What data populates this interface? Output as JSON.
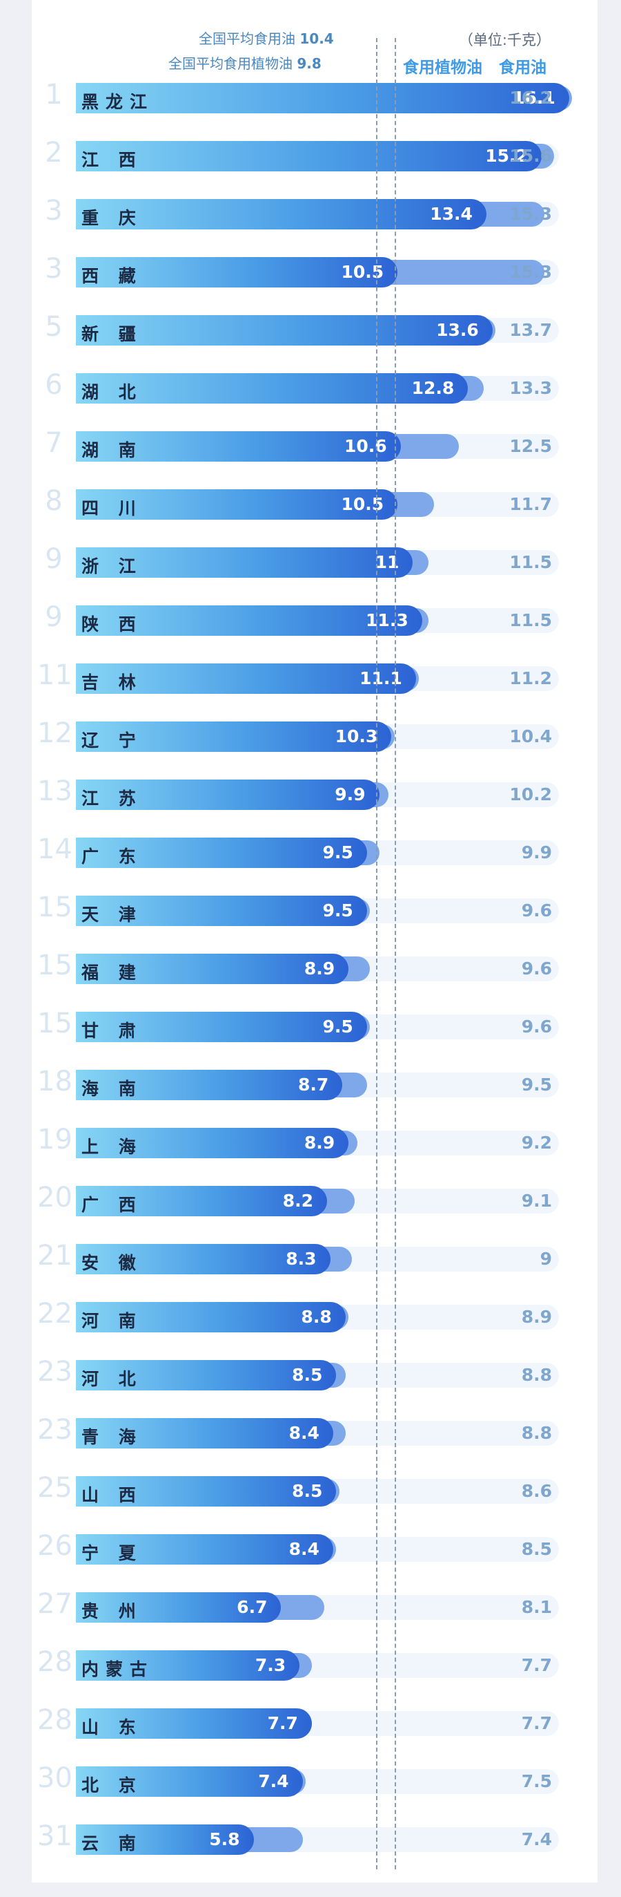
{
  "chart_data": {
    "type": "bar",
    "legend": {
      "avg_oil_label": "全国平均食用油",
      "avg_oil_value": "10.4",
      "avg_veg_label": "全国平均食用植物油",
      "avg_veg_value": "9.8"
    },
    "unit": "（单位:千克）",
    "series": [
      {
        "name": "食用植物油"
      },
      {
        "name": "食用油"
      }
    ],
    "rows": [
      {
        "rank": "1",
        "province": "黑龙江",
        "veg": 16.1,
        "total": 16.2
      },
      {
        "rank": "2",
        "province": "江 西",
        "veg": 15.2,
        "total": 15.6
      },
      {
        "rank": "3",
        "province": "重 庆",
        "veg": 13.4,
        "total": 15.3
      },
      {
        "rank": "3",
        "province": "西 藏",
        "veg": 10.5,
        "total": 15.3
      },
      {
        "rank": "5",
        "province": "新 疆",
        "veg": 13.6,
        "total": 13.7
      },
      {
        "rank": "6",
        "province": "湖 北",
        "veg": 12.8,
        "total": 13.3
      },
      {
        "rank": "7",
        "province": "湖 南",
        "veg": 10.6,
        "total": 12.5
      },
      {
        "rank": "8",
        "province": "四 川",
        "veg": 10.5,
        "total": 11.7
      },
      {
        "rank": "9",
        "province": "浙 江",
        "veg": 11,
        "total": 11.5
      },
      {
        "rank": "9",
        "province": "陕 西",
        "veg": 11.3,
        "total": 11.5
      },
      {
        "rank": "11",
        "province": "吉 林",
        "veg": 11.1,
        "total": 11.2
      },
      {
        "rank": "12",
        "province": "辽 宁",
        "veg": 10.3,
        "total": 10.4
      },
      {
        "rank": "13",
        "province": "江 苏",
        "veg": 9.9,
        "total": 10.2
      },
      {
        "rank": "14",
        "province": "广 东",
        "veg": 9.5,
        "total": 9.9
      },
      {
        "rank": "15",
        "province": "天 津",
        "veg": 9.5,
        "total": 9.6
      },
      {
        "rank": "15",
        "province": "福 建",
        "veg": 8.9,
        "total": 9.6
      },
      {
        "rank": "15",
        "province": "甘 肃",
        "veg": 9.5,
        "total": 9.6
      },
      {
        "rank": "18",
        "province": "海 南",
        "veg": 8.7,
        "total": 9.5
      },
      {
        "rank": "19",
        "province": "上 海",
        "veg": 8.9,
        "total": 9.2
      },
      {
        "rank": "20",
        "province": "广 西",
        "veg": 8.2,
        "total": 9.1
      },
      {
        "rank": "21",
        "province": "安 徽",
        "veg": 8.3,
        "total": 9
      },
      {
        "rank": "22",
        "province": "河 南",
        "veg": 8.8,
        "total": 8.9
      },
      {
        "rank": "23",
        "province": "河 北",
        "veg": 8.5,
        "total": 8.8
      },
      {
        "rank": "23",
        "province": "青 海",
        "veg": 8.4,
        "total": 8.8
      },
      {
        "rank": "25",
        "province": "山 西",
        "veg": 8.5,
        "total": 8.6
      },
      {
        "rank": "26",
        "province": "宁 夏",
        "veg": 8.4,
        "total": 8.5
      },
      {
        "rank": "27",
        "province": "贵 州",
        "veg": 6.7,
        "total": 8.1
      },
      {
        "rank": "28",
        "province": "内蒙古",
        "veg": 7.3,
        "total": 7.7
      },
      {
        "rank": "28",
        "province": "山 东",
        "veg": 7.7,
        "total": 7.7
      },
      {
        "rank": "30",
        "province": "北 京",
        "veg": 7.4,
        "total": 7.5
      },
      {
        "rank": "31",
        "province": "云 南",
        "veg": 5.8,
        "total": 7.4
      }
    ],
    "colors": {
      "veg_bar_start": "#87d6f5",
      "veg_bar_end": "#2c63d4",
      "total_bar": "#7fa8ea",
      "track": "#f1f6fc",
      "header": "#3f9be6",
      "total_label": "#7fa6cc",
      "rank": "#d9e6f2"
    }
  }
}
